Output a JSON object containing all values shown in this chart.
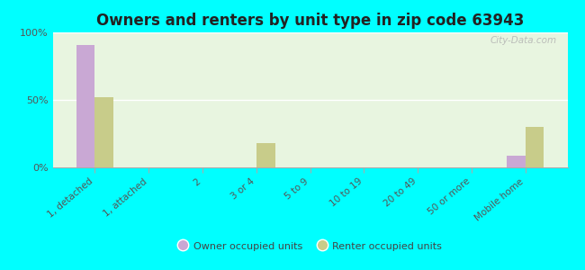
{
  "title": "Owners and renters by unit type in zip code 63943",
  "categories": [
    "1, detached",
    "1, attached",
    "2",
    "3 or 4",
    "5 to 9",
    "10 to 19",
    "20 to 49",
    "50 or more",
    "Mobile home"
  ],
  "owner_values": [
    91,
    0,
    0,
    0,
    0,
    0,
    0,
    0,
    9
  ],
  "renter_values": [
    52,
    0,
    0,
    18,
    0,
    0,
    0,
    0,
    30
  ],
  "owner_color": "#c9a8d4",
  "renter_color": "#c8cc8a",
  "background_color": "#00ffff",
  "plot_bg_color": "#e8f5e0",
  "ylim": [
    0,
    100
  ],
  "yticks": [
    0,
    50,
    100
  ],
  "ytick_labels": [
    "0%",
    "50%",
    "100%"
  ],
  "bar_width": 0.35,
  "watermark": "City-Data.com",
  "legend_labels": [
    "Owner occupied units",
    "Renter occupied units"
  ]
}
